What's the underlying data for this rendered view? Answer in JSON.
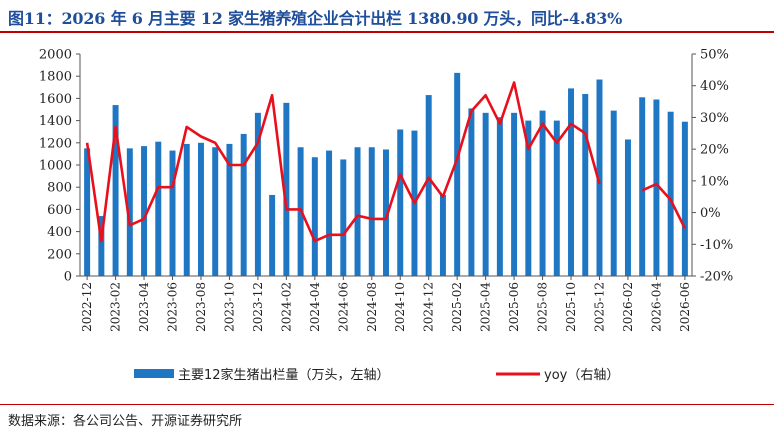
{
  "title": "图11：2026 年 6 月主要 12 家生猪养殖企业合计出栏 1380.90 万头，同比-4.83%",
  "source": "数据来源：各公司公告、开源证券研究所",
  "colors": {
    "bar": "#1f77c4",
    "line": "#e8101c",
    "rule": "#c00000",
    "title": "#1f4e9a"
  },
  "chart_data": {
    "type": "bar",
    "categories": [
      "2022-12",
      "2023-01",
      "2023-02",
      "2023-03",
      "2023-04",
      "2023-05",
      "2023-06",
      "2023-07",
      "2023-08",
      "2023-09",
      "2023-10",
      "2023-11",
      "2023-12",
      "2024-01",
      "2024-02",
      "2024-03",
      "2024-04",
      "2024-05",
      "2024-06",
      "2024-07",
      "2024-08",
      "2024-09",
      "2024-10",
      "2024-11",
      "2024-12",
      "2025-01",
      "2025-02",
      "2025-03",
      "2025-04",
      "2025-05",
      "2025-06",
      "2025-07",
      "2025-08",
      "2025-09",
      "2025-10",
      "2025-11",
      "2025-12",
      "2026-01",
      "2026-02",
      "2026-03",
      "2026-04",
      "2026-05",
      "2026-06"
    ],
    "xtick_labels": [
      "2022-12",
      "2023-02",
      "2023-04",
      "2023-06",
      "2023-08",
      "2023-10",
      "2023-12",
      "2024-02",
      "2024-04",
      "2024-06",
      "2024-08",
      "2024-10",
      "2024-12",
      "2025-02",
      "2025-04",
      "2025-06",
      "2025-08",
      "2025-10",
      "2025-12",
      "2026-02",
      "2026-04",
      "2026-06"
    ],
    "series": [
      {
        "name": "主要12家生猪出栏量（万头，左轴）",
        "type": "bar",
        "axis": "left",
        "values": [
          1150,
          540,
          1540,
          1150,
          1170,
          1210,
          1130,
          1190,
          1200,
          1160,
          1190,
          1280,
          1470,
          730,
          1560,
          1160,
          1070,
          1130,
          1050,
          1160,
          1160,
          1140,
          1320,
          1310,
          1630,
          730,
          1830,
          1510,
          1470,
          1430,
          1470,
          1400,
          1490,
          1400,
          1690,
          1640,
          1770,
          1490,
          1230,
          1610,
          1590,
          1480,
          1390
        ]
      },
      {
        "name": "yoy（右轴）",
        "type": "line",
        "axis": "right",
        "values": [
          22,
          -9,
          27,
          -4,
          -2,
          8,
          8,
          27,
          24,
          22,
          15,
          15,
          22,
          37,
          1,
          1,
          -9,
          -7,
          -7,
          -1,
          -2,
          -2,
          12,
          3,
          11,
          5,
          17,
          32,
          37,
          28,
          41,
          20,
          28,
          22,
          28,
          25,
          9,
          null,
          null,
          7,
          9,
          4,
          -5
        ]
      }
    ],
    "ylim_left": [
      0,
      2000
    ],
    "yticks_left": [
      0,
      200,
      400,
      600,
      800,
      1000,
      1200,
      1400,
      1600,
      1800,
      2000
    ],
    "ylim_right": [
      -20,
      50
    ],
    "yticks_right": [
      "-20%",
      "-10%",
      "0%",
      "10%",
      "20%",
      "30%",
      "40%",
      "50%"
    ],
    "legend": [
      "主要12家生猪出栏量（万头，左轴）",
      "yoy（右轴）"
    ],
    "legend_position": "bottom",
    "grid": false
  }
}
